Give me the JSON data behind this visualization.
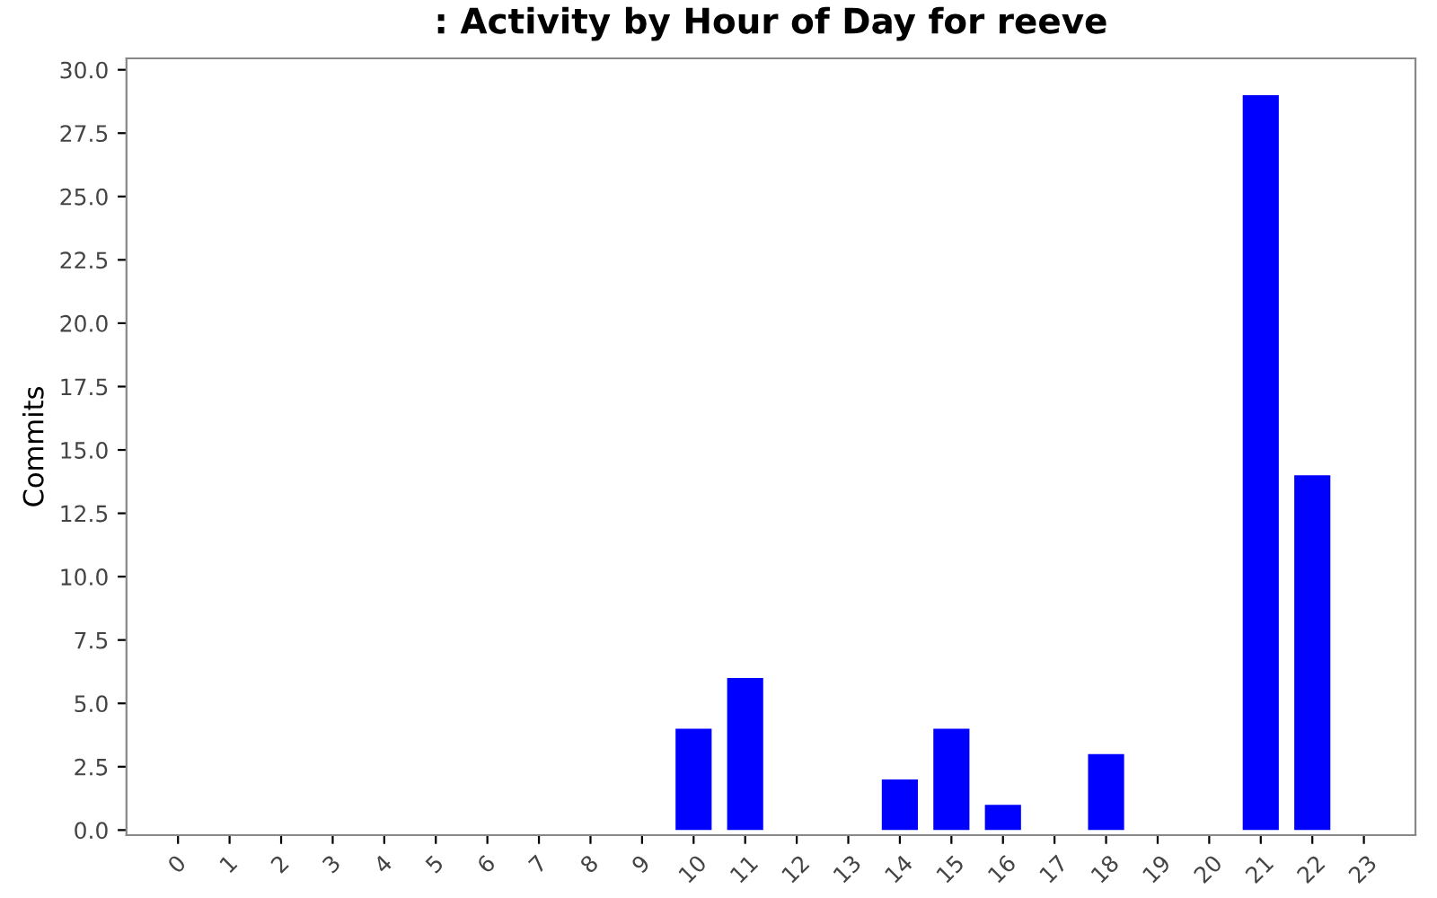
{
  "chart_data": {
    "type": "bar",
    "title": ": Activity by Hour of Day for reeve",
    "ylabel": "Commits",
    "categories": [
      "0",
      "1",
      "2",
      "3",
      "4",
      "5",
      "6",
      "7",
      "8",
      "9",
      "10",
      "11",
      "12",
      "13",
      "14",
      "15",
      "16",
      "17",
      "18",
      "19",
      "20",
      "21",
      "22",
      "23"
    ],
    "values": [
      0,
      0,
      0,
      0,
      0,
      0,
      0,
      0,
      0,
      0,
      4,
      6,
      0,
      0,
      2,
      4,
      1,
      0,
      3,
      0,
      0,
      29,
      14,
      0
    ],
    "color": "#0000ff",
    "ylim": [
      -0.2,
      30.45
    ],
    "yticks": [
      {
        "value": 0,
        "label": "0.0"
      },
      {
        "value": 2.5,
        "label": "2.5"
      },
      {
        "value": 5,
        "label": "5.0"
      },
      {
        "value": 7.5,
        "label": "7.5"
      },
      {
        "value": 10,
        "label": "10.0"
      },
      {
        "value": 12.5,
        "label": "12.5"
      },
      {
        "value": 15,
        "label": "15.0"
      },
      {
        "value": 17.5,
        "label": "17.5"
      },
      {
        "value": 20,
        "label": "20.0"
      },
      {
        "value": 22.5,
        "label": "22.5"
      },
      {
        "value": 25,
        "label": "25.0"
      },
      {
        "value": 27.5,
        "label": "27.5"
      },
      {
        "value": 30,
        "label": "30.0"
      }
    ],
    "grid": false
  }
}
